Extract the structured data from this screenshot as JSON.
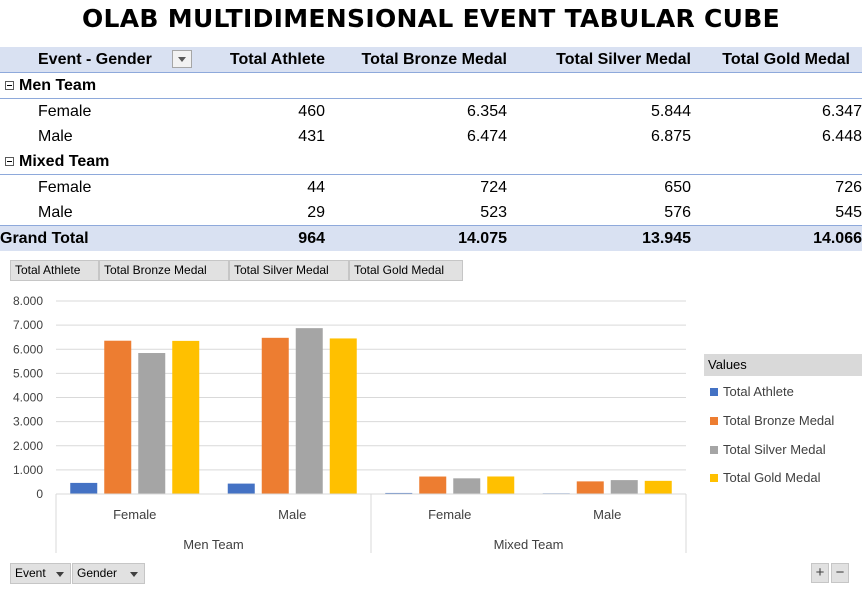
{
  "title": "OLAB MULTIDIMENSIONAL EVENT TABULAR CUBE",
  "pivot": {
    "headers": [
      "Event - Gender",
      "Total Athlete",
      "Total Bronze Medal",
      "Total Silver Medal",
      "Total Gold Medal"
    ],
    "groups": [
      {
        "name": "Men Team",
        "rows": [
          {
            "label": "Female",
            "values": [
              "460",
              "6.354",
              "5.844",
              "6.347"
            ]
          },
          {
            "label": "Male",
            "values": [
              "431",
              "6.474",
              "6.875",
              "6.448"
            ]
          }
        ]
      },
      {
        "name": "Mixed Team",
        "rows": [
          {
            "label": "Female",
            "values": [
              "44",
              "724",
              "650",
              "726"
            ]
          },
          {
            "label": "Male",
            "values": [
              "29",
              "523",
              "576",
              "545"
            ]
          }
        ]
      }
    ],
    "grand_total": {
      "label": "Grand Total",
      "values": [
        "964",
        "14.075",
        "13.945",
        "14.066"
      ]
    }
  },
  "field_buttons": [
    "Total Athlete",
    "Total Bronze Medal",
    "Total Silver Medal",
    "Total Gold Medal"
  ],
  "axis_buttons": [
    "Event",
    "Gender"
  ],
  "zoom": {
    "plus": "+",
    "minus": "−"
  },
  "colors": {
    "athlete": "#4472c4",
    "bronze": "#ed7d31",
    "silver": "#a5a5a5",
    "gold": "#ffc000"
  },
  "chart_data": {
    "type": "bar",
    "categories": [
      "Female",
      "Male",
      "Female",
      "Male"
    ],
    "groups": [
      {
        "name": "Men Team",
        "span": 2
      },
      {
        "name": "Mixed Team",
        "span": 2
      }
    ],
    "series": [
      {
        "name": "Total Athlete",
        "values": [
          460,
          431,
          44,
          29
        ]
      },
      {
        "name": "Total Bronze Medal",
        "values": [
          6354,
          6474,
          724,
          523
        ]
      },
      {
        "name": "Total Silver Medal",
        "values": [
          5844,
          6875,
          650,
          576
        ]
      },
      {
        "name": "Total Gold Medal",
        "values": [
          6347,
          6448,
          726,
          545
        ]
      }
    ],
    "ylim": [
      0,
      8000
    ],
    "yticks": [
      "0",
      "1.000",
      "2.000",
      "3.000",
      "4.000",
      "5.000",
      "6.000",
      "7.000",
      "8.000"
    ],
    "legend_title": "Values",
    "legend_position": "right",
    "grid": true
  }
}
